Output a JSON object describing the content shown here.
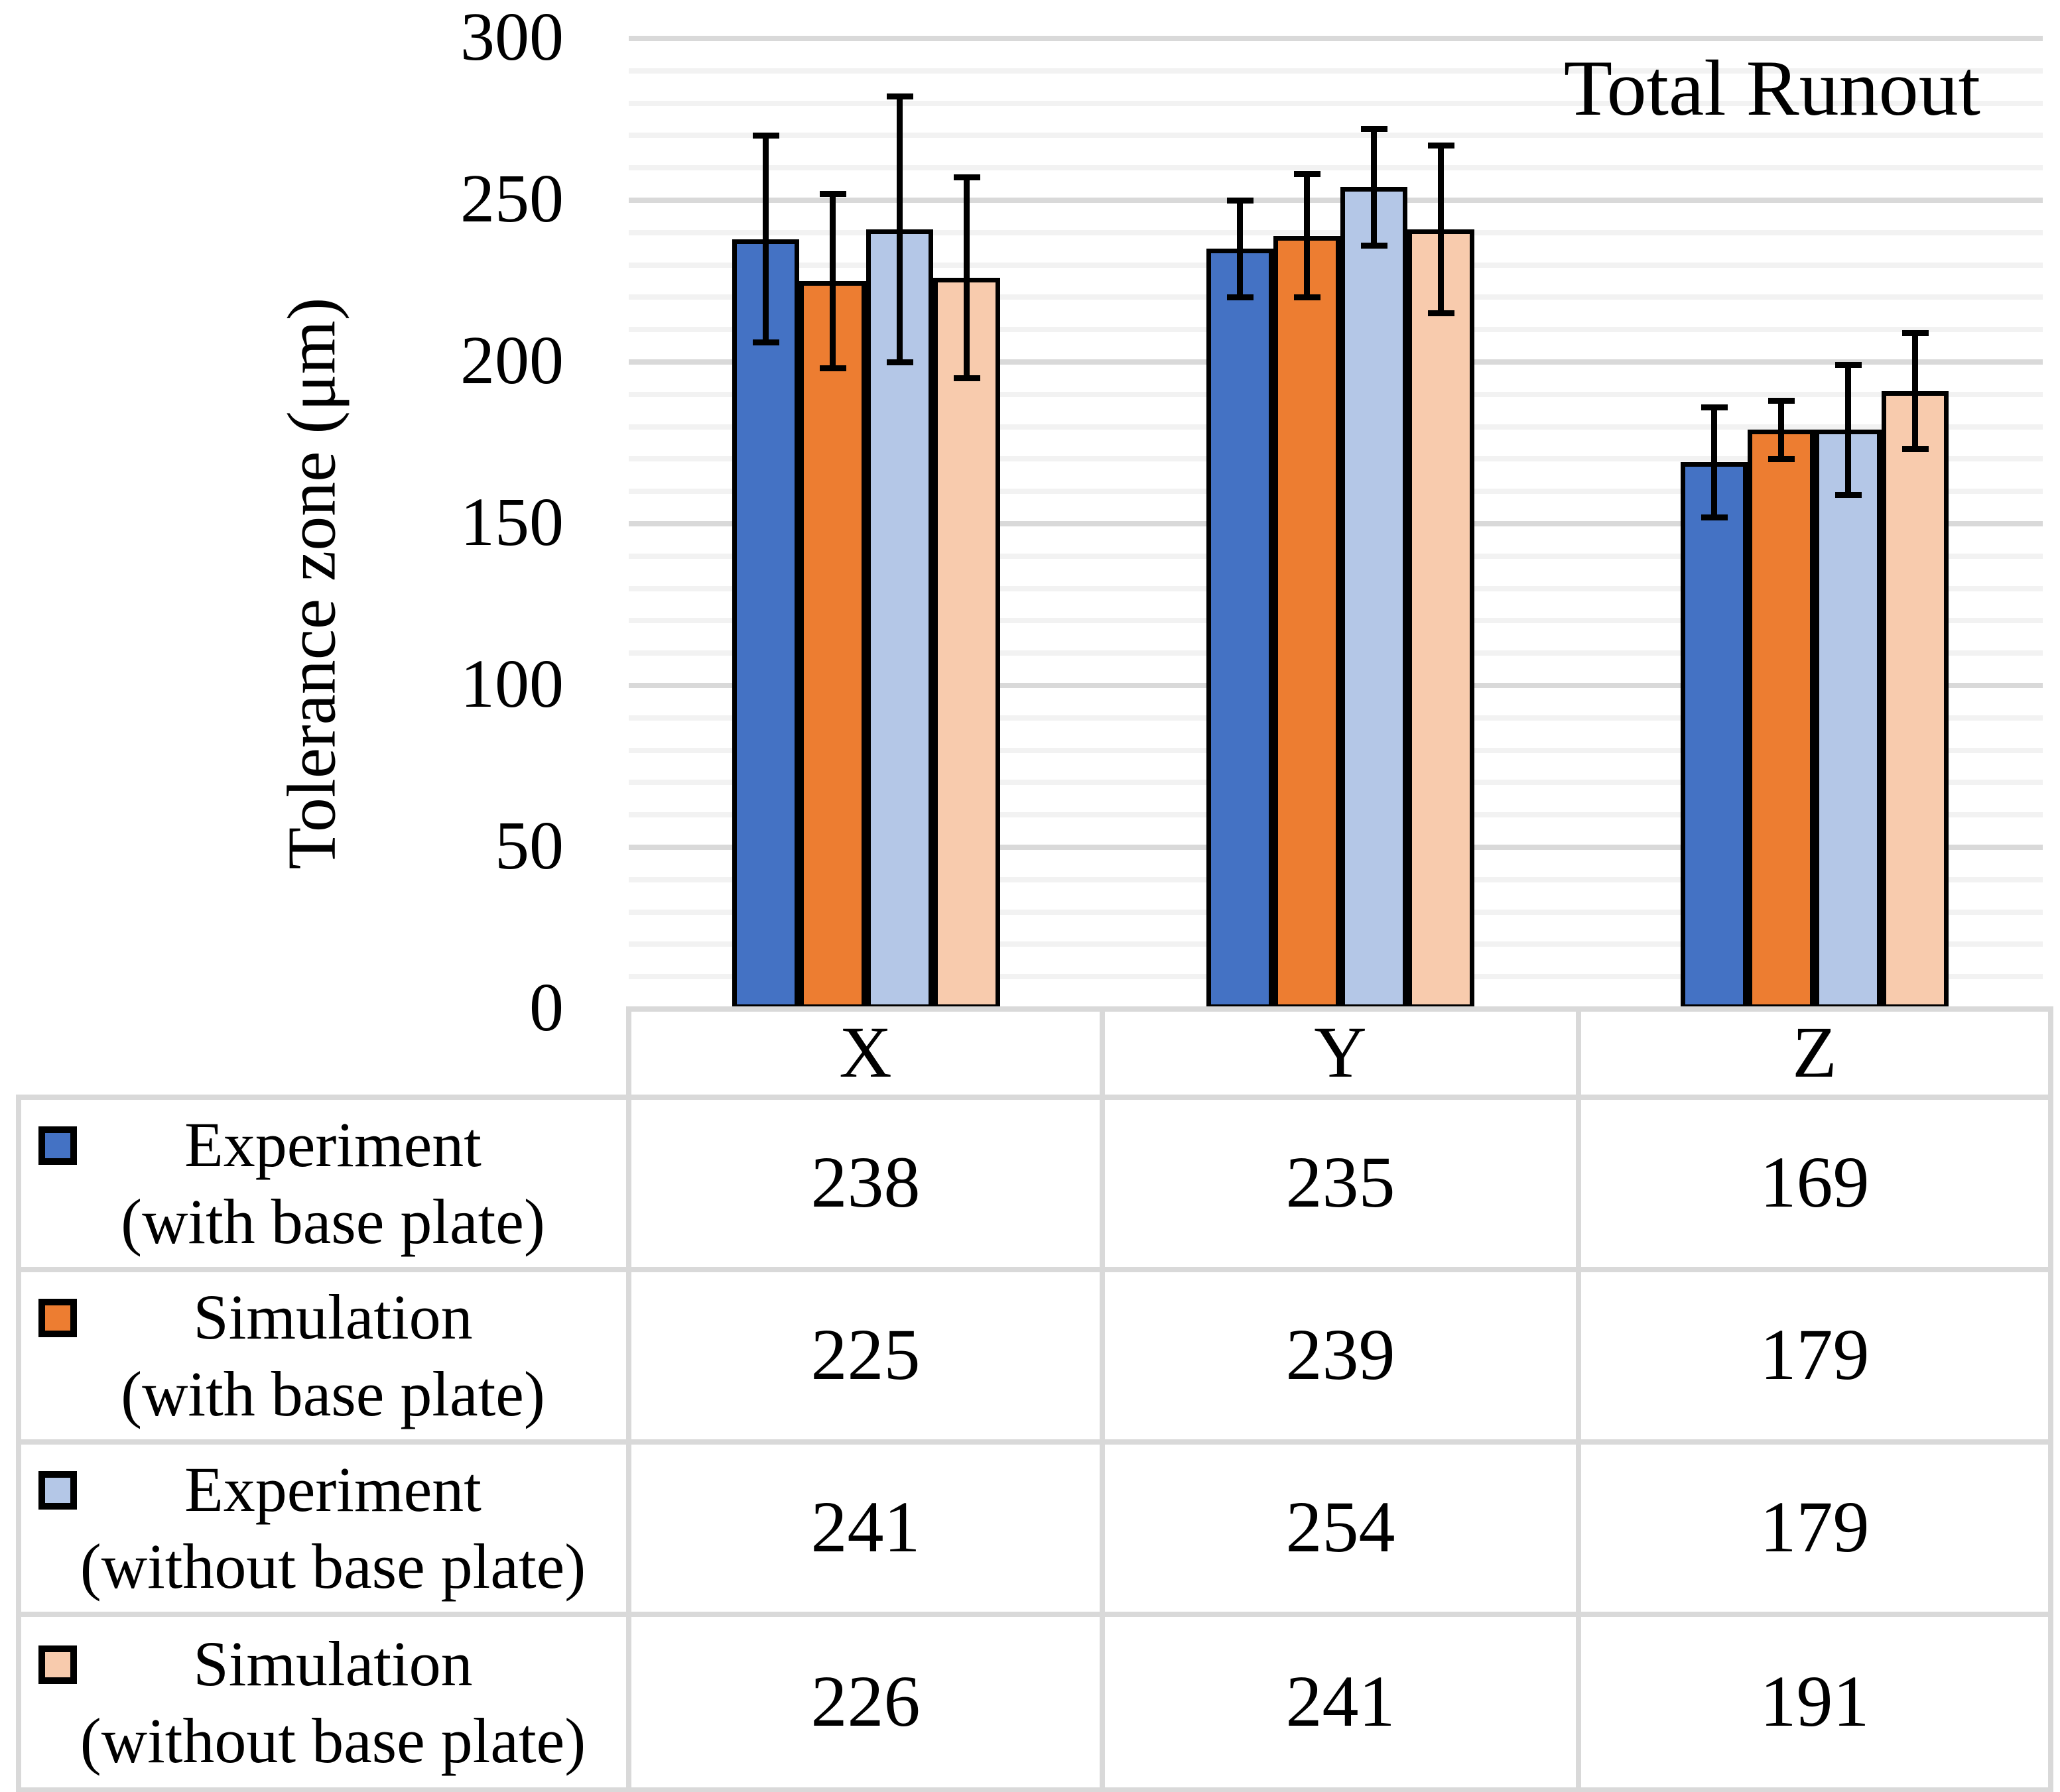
{
  "figure": {
    "title": "Total Runout",
    "y_axis_label": "Tolerance zone (μm)"
  },
  "chart_data": {
    "type": "bar",
    "title": "Total Runout",
    "ylabel": "Tolerance zone (μm)",
    "xlabel": "",
    "categories": [
      "X",
      "Y",
      "Z"
    ],
    "ylim": [
      0,
      300
    ],
    "yticks": [
      0,
      50,
      100,
      150,
      200,
      250,
      300
    ],
    "grid": {
      "minor_step": 10,
      "major_step": 50,
      "minor_color": "#F2F2F2",
      "major_color": "#D9D9D9"
    },
    "bar_outline_color": "#000000",
    "error_bar_color": "#000000",
    "table_border_color": "#D9D9D9",
    "legend_position": "table-left-column",
    "series": [
      {
        "name": "Experiment (with base plate)",
        "label_line1": "Experiment",
        "label_line2": "(with base plate)",
        "color": "#4472C4",
        "values": [
          238,
          235,
          169
        ],
        "errors": [
          32,
          15,
          17
        ]
      },
      {
        "name": "Simulation (with base plate)",
        "label_line1": "Simulation",
        "label_line2": "(with base plate)",
        "color": "#ED7D31",
        "values": [
          225,
          239,
          179
        ],
        "errors": [
          27,
          19,
          9
        ]
      },
      {
        "name": "Experiment (without base plate)",
        "label_line1": "Experiment",
        "label_line2": "(without base plate)",
        "color": "#B4C7E7",
        "values": [
          241,
          254,
          179
        ],
        "errors": [
          41,
          18,
          20
        ]
      },
      {
        "name": "Simulation (without base plate)",
        "label_line1": "Simulation",
        "label_line2": "(without base plate)",
        "color": "#F8CBAD",
        "values": [
          226,
          241,
          191
        ],
        "errors": [
          31,
          26,
          18
        ]
      }
    ]
  }
}
